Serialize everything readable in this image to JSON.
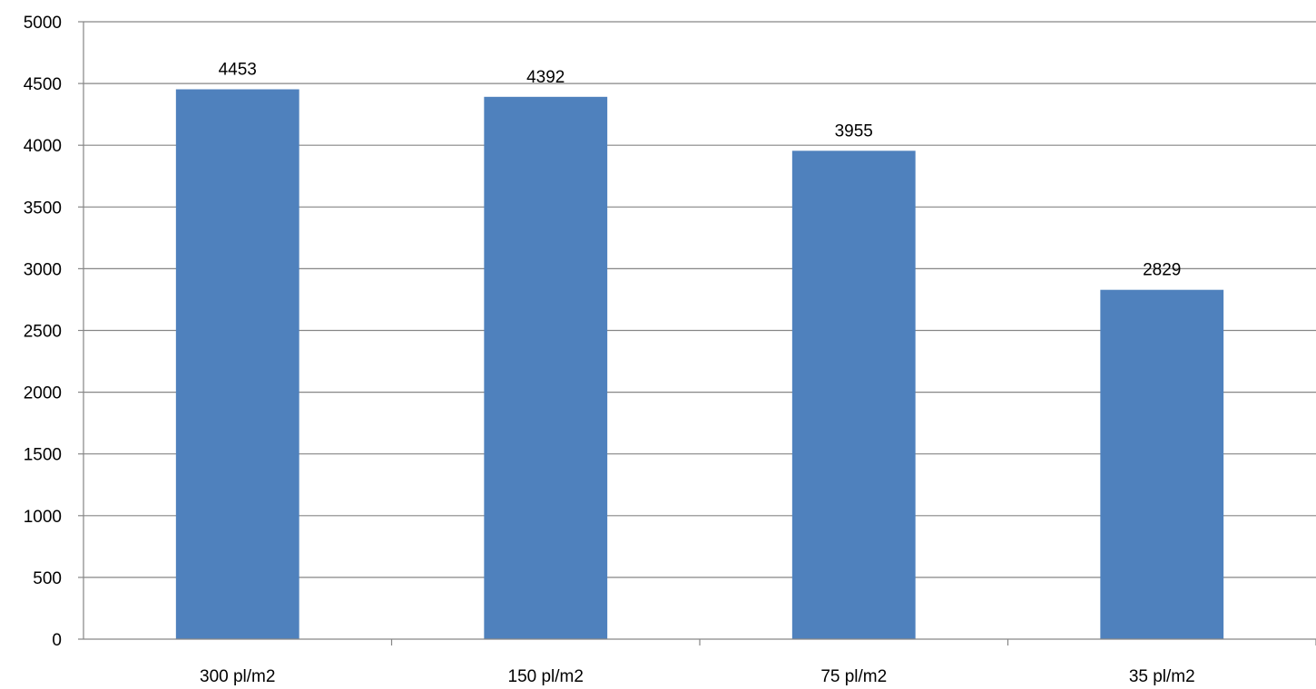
{
  "chart_data": {
    "type": "bar",
    "categories": [
      "300 pl/m2",
      "150 pl/m2",
      "75 pl/m2",
      "35 pl/m2"
    ],
    "values": [
      4453,
      4392,
      3955,
      2829
    ],
    "data_labels": [
      "4453",
      "4392",
      "3955",
      "2829"
    ],
    "title": "",
    "xlabel": "",
    "ylabel": "",
    "ylim": [
      0,
      5000
    ],
    "yticks": [
      0,
      500,
      1000,
      1500,
      2000,
      2500,
      3000,
      3500,
      4000,
      4500,
      5000
    ],
    "ytick_labels": [
      "0",
      "500",
      "1000",
      "1500",
      "2000",
      "2500",
      "3000",
      "3500",
      "4000",
      "4500",
      "5000"
    ],
    "grid": true,
    "legend": "none",
    "colors": {
      "bar": "#4F81BD",
      "gridline": "#868686",
      "axis": "#868686"
    }
  }
}
